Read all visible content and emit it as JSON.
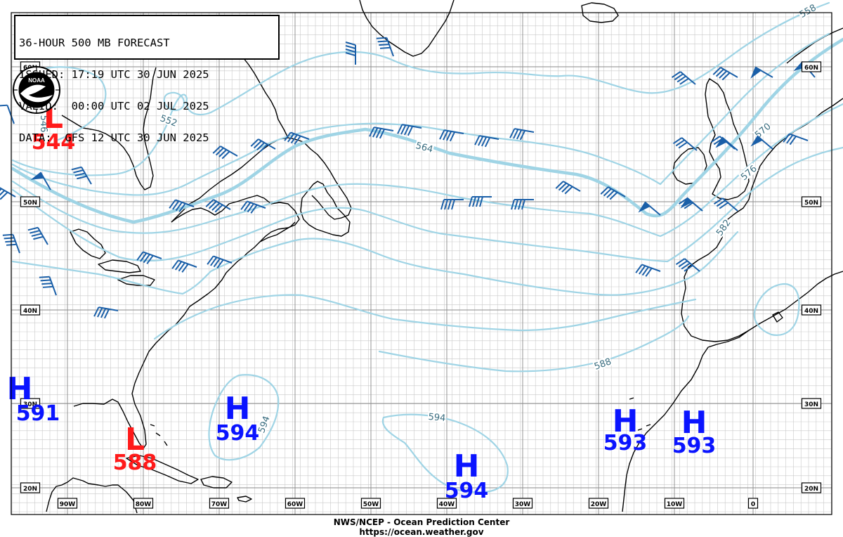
{
  "header": {
    "line1": "36-HOUR 500 MB FORECAST",
    "line2": "ISSUED: 17:19 UTC 30 JUN 2025",
    "line3": "VALID:  00:00 UTC 02 JUL 2025",
    "line4": "DATA:  GFS 12 UTC 30 JUN 2025"
  },
  "logo": {
    "text": "NOAA",
    "icon": "noaa-logo-icon"
  },
  "footer": {
    "line1": "NWS/NCEP - Ocean Prediction Center",
    "line2": "https://ocean.weather.gov"
  },
  "map": {
    "projection": "mercator",
    "lon_range": [
      -98,
      12
    ],
    "lat_range": [
      17,
      67
    ],
    "lat_labels": [
      "60N",
      "50N",
      "40N",
      "30N",
      "20N"
    ],
    "lon_labels": [
      "90W",
      "80W",
      "70W",
      "60W",
      "50W",
      "40W",
      "30W",
      "20W",
      "10W",
      "0"
    ],
    "colors": {
      "contour": "#9fd4e5",
      "contour_label": "#3b6e80",
      "barb": "#1a5fa8",
      "high": "#0a14ff",
      "low": "#ff1a1a",
      "coast": "#000000",
      "grid": "#b4b4b4"
    }
  },
  "contours": [
    {
      "value": 546,
      "label": "546"
    },
    {
      "value": 552,
      "label": "552"
    },
    {
      "value": 558,
      "label": "558"
    },
    {
      "value": 564,
      "label": "564",
      "bold": true
    },
    {
      "value": 570,
      "label": "570"
    },
    {
      "value": 576,
      "label": "576"
    },
    {
      "value": 582,
      "label": "582"
    },
    {
      "value": 588,
      "label": "588"
    },
    {
      "value": 594,
      "label": "594"
    }
  ],
  "centers": [
    {
      "type": "L",
      "symbol": "L",
      "value": "544",
      "color": "red"
    },
    {
      "type": "L",
      "symbol": "L",
      "value": "588",
      "color": "red"
    },
    {
      "type": "H",
      "symbol": "H",
      "value": "591",
      "color": "blue"
    },
    {
      "type": "H",
      "symbol": "H",
      "value": "594",
      "color": "blue"
    },
    {
      "type": "H",
      "symbol": "H",
      "value": "594",
      "color": "blue"
    },
    {
      "type": "H",
      "symbol": "H",
      "value": "593",
      "color": "blue"
    },
    {
      "type": "H",
      "symbol": "H",
      "value": "593",
      "color": "blue"
    }
  ]
}
